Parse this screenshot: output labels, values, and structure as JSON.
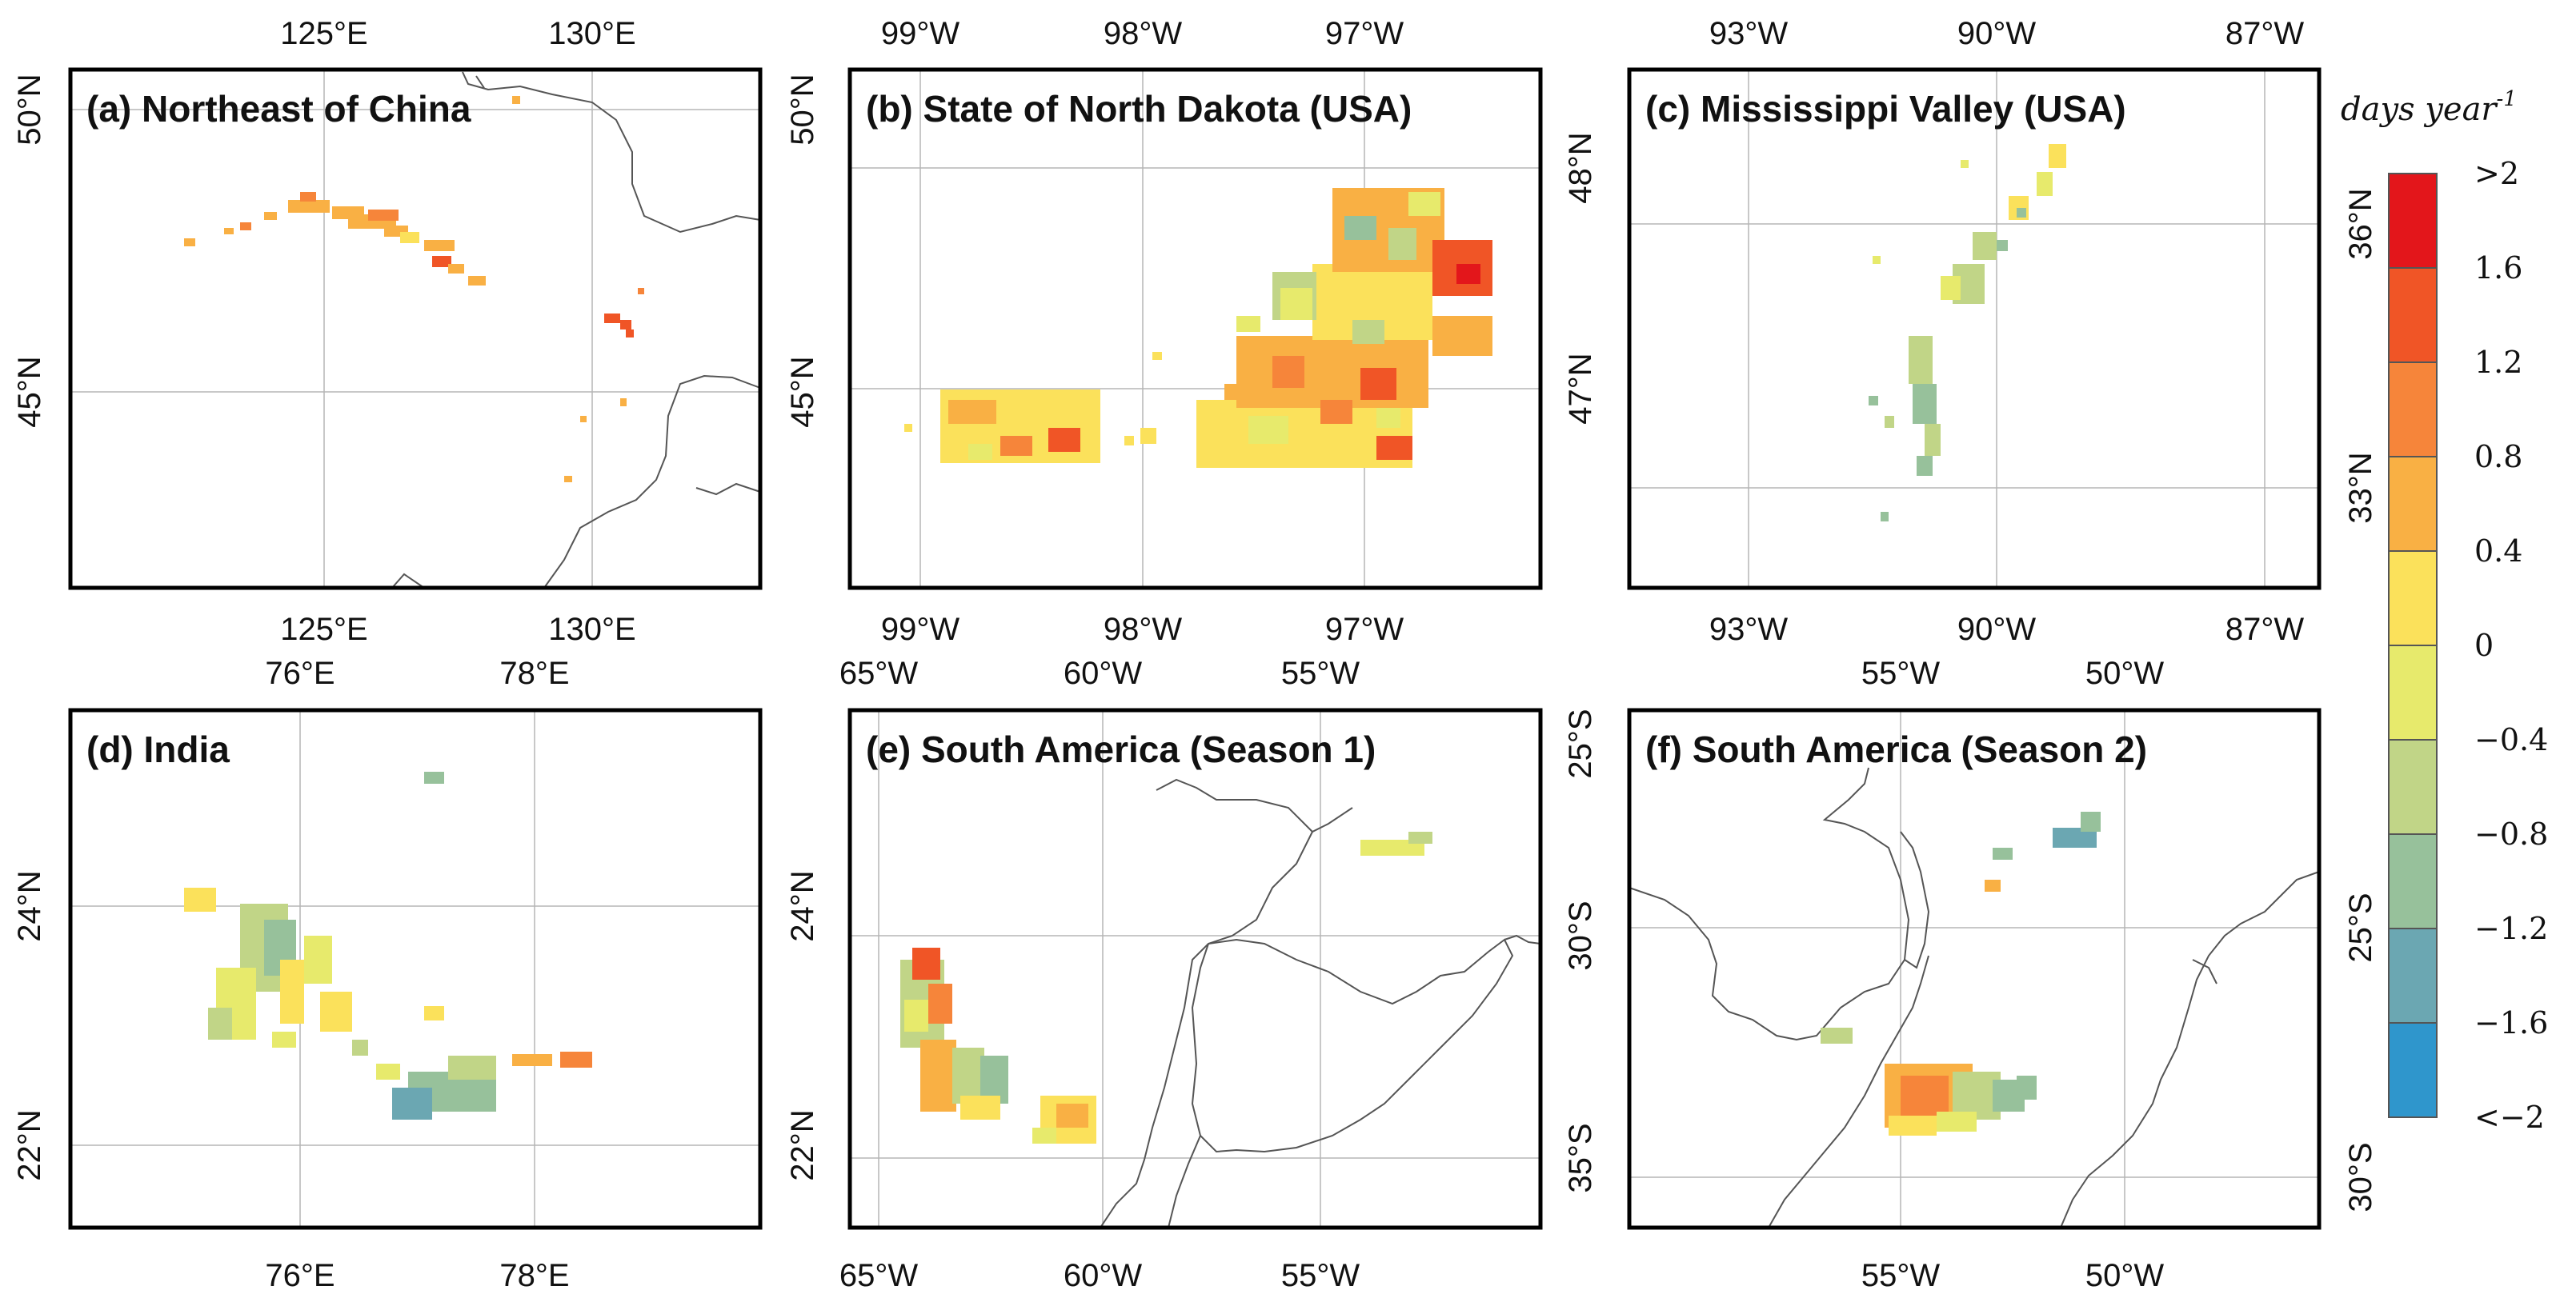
{
  "legend": {
    "title": "days year",
    "title_sup": "-1",
    "labels": [
      ">2",
      "1.6",
      "1.2",
      "0.8",
      "0.4",
      "0",
      "−0.4",
      "−0.8",
      "−1.2",
      "−1.6",
      "<−2"
    ],
    "colors": [
      "#e3161b",
      "#f05526",
      "#f6853a",
      "#f9b044",
      "#fbe15b",
      "#e7ea6c",
      "#c1d587",
      "#97c19b",
      "#6ba7b2",
      "#2f96cc"
    ]
  },
  "panels": [
    {
      "title": "(a) Northeast of China",
      "top_ticks": [
        "125°E",
        "130°E"
      ],
      "bottom_ticks": [
        "125°E",
        "130°E"
      ],
      "left_ticks": [
        "50°N",
        "45°N"
      ],
      "right_ticks": [
        "50°N",
        "45°N"
      ]
    },
    {
      "title": "(b) State of North Dakota (USA)",
      "top_ticks": [
        "99°W",
        "98°W",
        "97°W"
      ],
      "bottom_ticks": [
        "99°W",
        "98°W",
        "97°W"
      ],
      "left_ticks": [],
      "right_ticks": [
        "48°N",
        "47°N"
      ]
    },
    {
      "title": "(c) Mississippi Valley (USA)",
      "top_ticks": [
        "93°W",
        "90°W",
        "87°W"
      ],
      "bottom_ticks": [
        "93°W",
        "90°W",
        "87°W"
      ],
      "left_ticks": [],
      "right_ticks": [
        "36°N",
        "33°N"
      ]
    },
    {
      "title": "(d) India",
      "top_ticks": [
        "76°E",
        "78°E"
      ],
      "bottom_ticks": [
        "76°E",
        "78°E"
      ],
      "left_ticks": [
        "24°N",
        "22°N"
      ],
      "right_ticks": [
        "24°N",
        "22°N"
      ]
    },
    {
      "title": "(e) South America (Season 1)",
      "top_ticks": [
        "65°W",
        "60°W",
        "55°W"
      ],
      "bottom_ticks": [
        "65°W",
        "60°W",
        "55°W"
      ],
      "left_ticks": [],
      "right_ticks": [
        "25°S",
        "30°S",
        "35°S"
      ]
    },
    {
      "title": "(f) South America (Season 2)",
      "top_ticks": [
        "55°W",
        "50°W"
      ],
      "bottom_ticks": [
        "55°W",
        "50°W"
      ],
      "left_ticks": [],
      "right_ticks": [
        "25°S",
        "30°S"
      ]
    }
  ]
}
